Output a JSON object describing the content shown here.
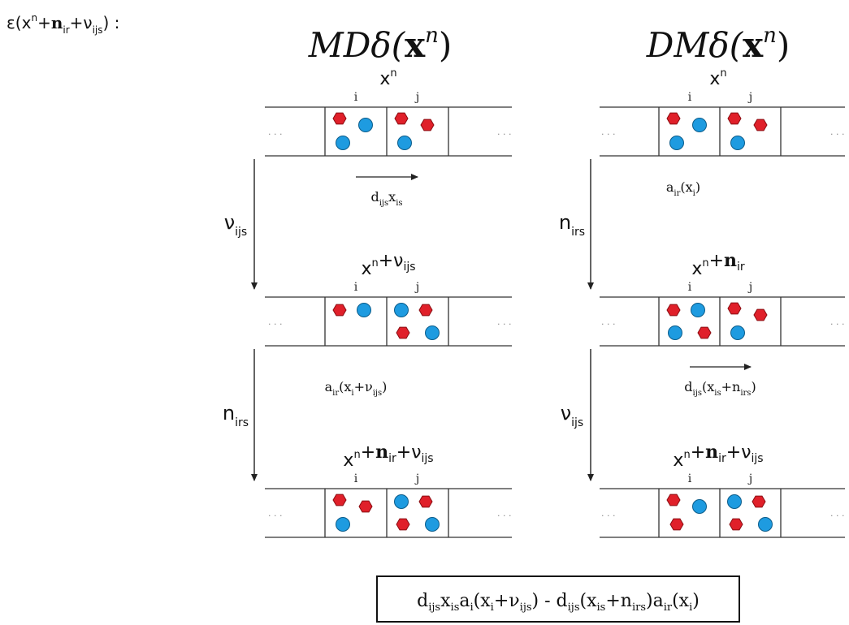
{
  "epsilon_label": {
    "text": "ε(x",
    "sup": "n",
    "plus1": "+",
    "bold": "n",
    "sub1": "ir",
    "plus2": "+ν",
    "sub2": "ijs",
    "end": ") :"
  },
  "columns": [
    {
      "header": {
        "pre": "MD",
        "delta": "δ(",
        "bx": "x",
        "sup": "n",
        "close": ")"
      },
      "states": [
        {
          "label": {
            "base": "x",
            "sup": "n",
            "rest": []
          },
          "cell_i": "i",
          "cell_j": "j",
          "particles": {
            "i": [
              "red",
              "blue",
              "blue"
            ],
            "j": [
              "red",
              "red",
              "blue"
            ]
          }
        },
        {
          "label": {
            "base": "x",
            "sup": "n",
            "rest": [
              {
                "t": "+ν"
              },
              {
                "sub": "ijs"
              }
            ]
          },
          "cell_i": "i",
          "cell_j": "j",
          "particles": {
            "i": [
              "red",
              "blue"
            ],
            "j": [
              "blue",
              "red",
              "red",
              "blue"
            ]
          }
        },
        {
          "label": {
            "base": "x",
            "sup": "n",
            "rest": [
              {
                "t": "+"
              },
              {
                "b": "n"
              },
              {
                "sub": "ir"
              },
              {
                "t": "+ν"
              },
              {
                "sub": "ijs"
              }
            ]
          },
          "cell_i": "i",
          "cell_j": "j",
          "particles": {
            "i": [
              "red",
              "red",
              "blue"
            ],
            "j": [
              "blue",
              "red",
              "red",
              "blue"
            ]
          }
        }
      ],
      "steps": [
        {
          "arrow_label": {
            "main": "ν",
            "sub": "ijs"
          },
          "rate": [
            {
              "t": "d"
            },
            {
              "sub": "ijs"
            },
            {
              "t": "x"
            },
            {
              "sub": "is"
            }
          ],
          "rate_arrow": true
        },
        {
          "arrow_label": {
            "main": "n",
            "sub": "irs"
          },
          "rate": [
            {
              "t": "a"
            },
            {
              "sub": "ir"
            },
            {
              "t": "(x"
            },
            {
              "sub": "i"
            },
            {
              "t": "+ν"
            },
            {
              "sub": "ijs"
            },
            {
              "t": ")"
            }
          ],
          "rate_arrow": false
        }
      ]
    },
    {
      "header": {
        "pre": "DM",
        "delta": "δ(",
        "bx": "x",
        "sup": "n",
        "close": ")"
      },
      "states": [
        {
          "label": {
            "base": "x",
            "sup": "n",
            "rest": []
          },
          "cell_i": "i",
          "cell_j": "j",
          "particles": {
            "i": [
              "red",
              "blue",
              "blue"
            ],
            "j": [
              "red",
              "red",
              "blue"
            ]
          }
        },
        {
          "label": {
            "base": "x",
            "sup": "n",
            "rest": [
              {
                "t": "+"
              },
              {
                "b": "n"
              },
              {
                "sub": "ir"
              }
            ]
          },
          "cell_i": "i",
          "cell_j": "j",
          "particles": {
            "i": [
              "red",
              "blue",
              "blue",
              "red"
            ],
            "j": [
              "red",
              "red",
              "blue"
            ]
          }
        },
        {
          "label": {
            "base": "x",
            "sup": "n",
            "rest": [
              {
                "t": "+"
              },
              {
                "b": "n"
              },
              {
                "sub": "ir"
              },
              {
                "t": "+ν"
              },
              {
                "sub": "ijs"
              }
            ]
          },
          "cell_i": "i",
          "cell_j": "j",
          "particles": {
            "i": [
              "red",
              "blue",
              "red"
            ],
            "j": [
              "blue",
              "red",
              "red",
              "blue"
            ]
          }
        }
      ],
      "steps": [
        {
          "arrow_label": {
            "main": "n",
            "sub": "irs"
          },
          "rate": [
            {
              "t": "a"
            },
            {
              "sub": "ir"
            },
            {
              "t": "(x"
            },
            {
              "sub": "i"
            },
            {
              "t": ")"
            }
          ],
          "rate_arrow": false
        },
        {
          "arrow_label": {
            "main": "ν",
            "sub": "ijs"
          },
          "rate": [
            {
              "t": "d"
            },
            {
              "sub": "ijs"
            },
            {
              "t": "(x"
            },
            {
              "sub": "is"
            },
            {
              "t": "+n"
            },
            {
              "sub": "irs"
            },
            {
              "t": ")"
            }
          ],
          "rate_arrow": true
        }
      ]
    }
  ],
  "ellipsis": ". . .",
  "result_formula": [
    {
      "t": "d"
    },
    {
      "sub": "ijs"
    },
    {
      "t": "x"
    },
    {
      "sub": "is"
    },
    {
      "t": "a"
    },
    {
      "sub": "i"
    },
    {
      "t": "(x"
    },
    {
      "sub": "i"
    },
    {
      "t": "+ν"
    },
    {
      "sub": "ijs"
    },
    {
      "t": ") - d"
    },
    {
      "sub": "ijs"
    },
    {
      "t": "(x"
    },
    {
      "sub": "is"
    },
    {
      "t": "+n"
    },
    {
      "sub": "irs"
    },
    {
      "t": ")a"
    },
    {
      "sub": "ir"
    },
    {
      "t": "(x"
    },
    {
      "sub": "i"
    },
    {
      "t": ")"
    }
  ],
  "colors": {
    "red": "#e0202a",
    "blue": "#1e9be0",
    "line": "#333333",
    "text": "#111111"
  }
}
